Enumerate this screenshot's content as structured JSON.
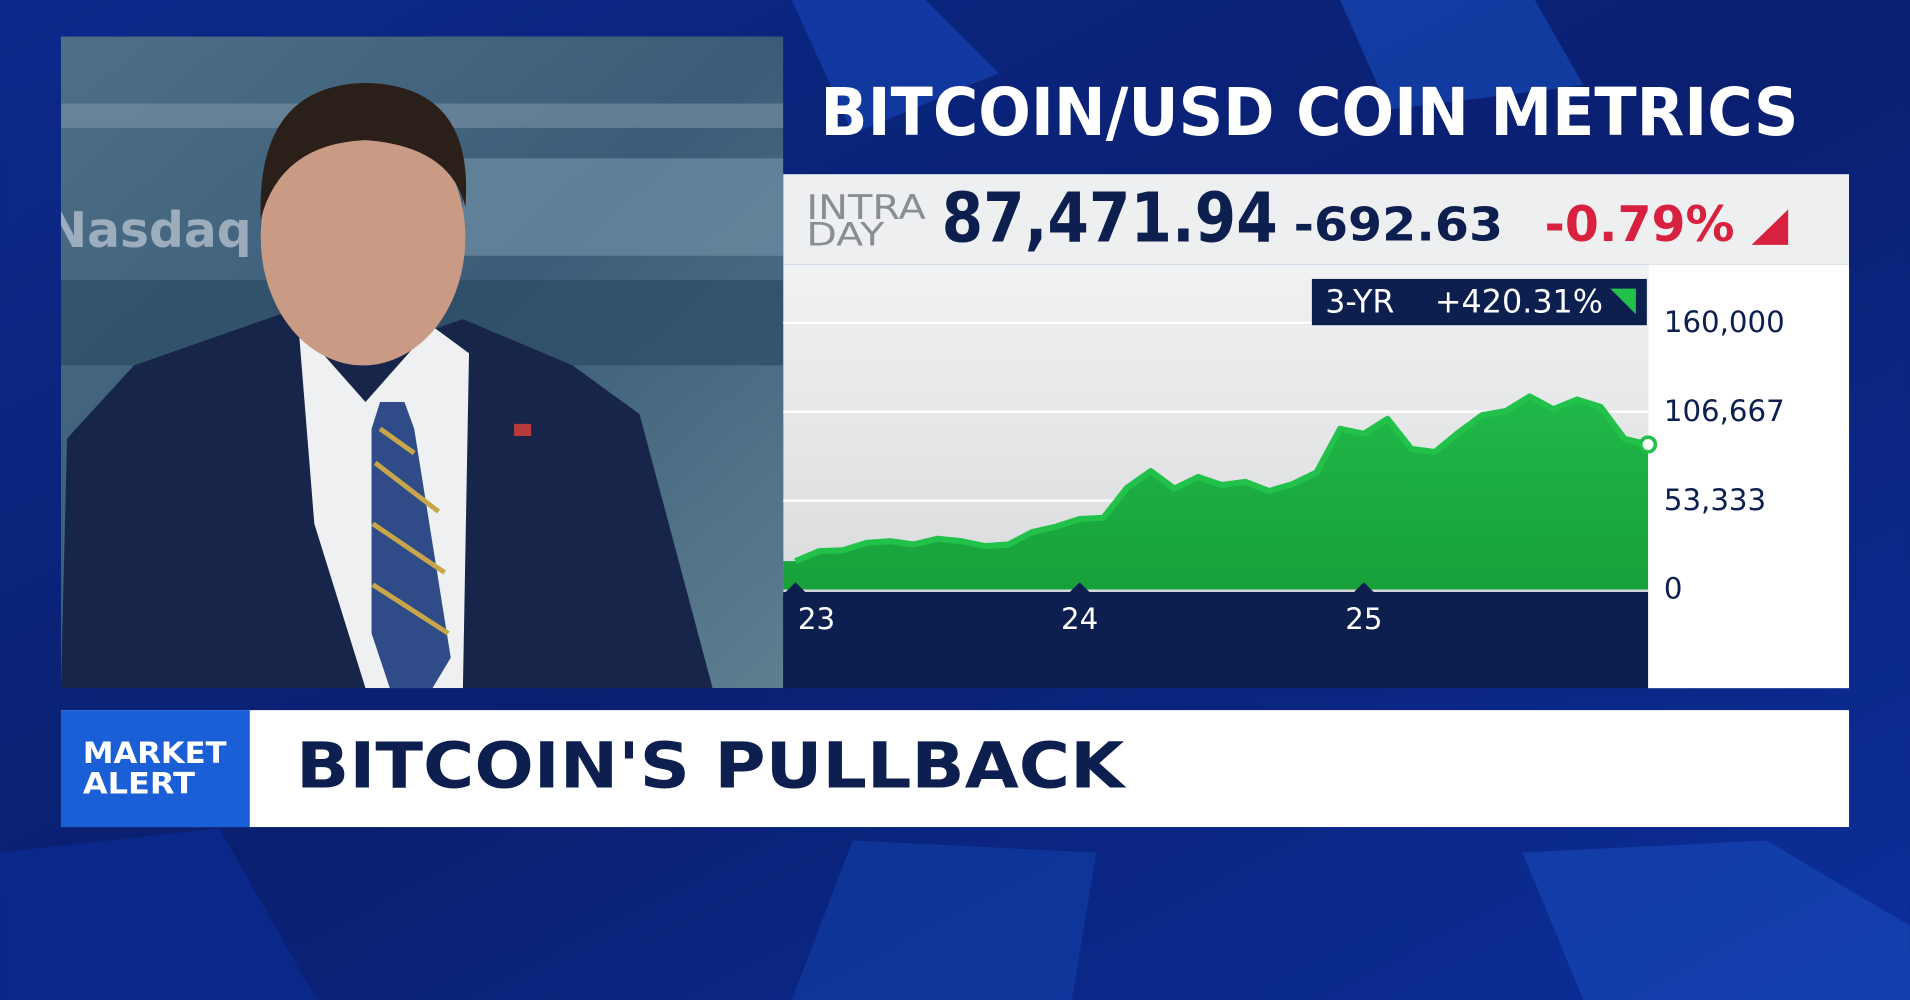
{
  "chart_data": {
    "type": "area",
    "title": "BITCOIN/USD COIN METRICS",
    "categories": [
      "23",
      null,
      null,
      null,
      null,
      null,
      null,
      null,
      null,
      null,
      null,
      null,
      "24",
      null,
      null,
      null,
      null,
      null,
      null,
      null,
      null,
      null,
      null,
      null,
      "25",
      null,
      null,
      null,
      null,
      null,
      null,
      null,
      null,
      null,
      null,
      null,
      null
    ],
    "values": [
      17000,
      23000,
      23500,
      28000,
      29000,
      27000,
      30500,
      29000,
      26000,
      27000,
      34500,
      37700,
      42300,
      43000,
      61000,
      71000,
      60600,
      67500,
      62700,
      64600,
      59000,
      63300,
      70200,
      96400,
      93400,
      102400,
      84400,
      82500,
      94200,
      104600,
      107100,
      115800,
      108200,
      114000,
      109500,
      90400,
      87000
    ],
    "color": "#22c24a",
    "ylim": [
      0,
      160000
    ],
    "yticks": [
      0,
      {
        "value": 53333,
        "label": "53,333"
      },
      {
        "value": 106667,
        "label": "106,667"
      },
      {
        "value": 160000,
        "label": "160,000"
      }
    ],
    "grid": true,
    "period": "3-YR",
    "period_change": "+420.31%"
  },
  "quote": {
    "label_top": "INTRA",
    "label_bottom": "DAY",
    "price": "87,471.94",
    "change": "-692.63",
    "change_pct": "-0.79%"
  },
  "banner": {
    "tag_top": "MARKET",
    "tag_bottom": "ALERT",
    "headline": "BITCOIN'S PULLBACK"
  },
  "video": {
    "sign": "Nasdaq"
  }
}
